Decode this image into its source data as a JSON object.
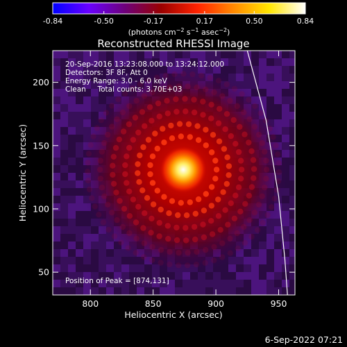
{
  "colorbar": {
    "tick_labels": [
      "-0.84",
      "-0.50",
      "-0.17",
      "0.17",
      "0.50",
      "0.84"
    ],
    "tick_values": [
      -0.84,
      -0.5,
      -0.17,
      0.17,
      0.5,
      0.84
    ],
    "range": [
      -0.84,
      0.84
    ],
    "units_label_parts": [
      "(photons cm",
      "−2",
      " s",
      "−1",
      " asec",
      "−2",
      ")"
    ],
    "colors": [
      "#0000ff",
      "#6a00ff",
      "#6e007a",
      "#9a0000",
      "#ff2200",
      "#ff8800",
      "#ffe600",
      "#ffffff"
    ]
  },
  "chart_data": {
    "type": "heatmap",
    "title": "Reconstructed RHESSI Image",
    "xlabel": "Heliocentric X (arcsec)",
    "ylabel": "Heliocentric Y (arcsec)",
    "xlim": [
      770,
      963
    ],
    "ylim": [
      32,
      225
    ],
    "x_ticks": [
      800,
      850,
      900,
      950
    ],
    "y_ticks": [
      50,
      100,
      150,
      200
    ],
    "x_tick_labels": [
      "800",
      "850",
      "900",
      "950"
    ],
    "y_tick_labels": [
      "50",
      "100",
      "150",
      "200"
    ],
    "peak": [
      874,
      131
    ],
    "annotations": [
      "20-Sep-2016 13:23:08.000 to 13:24:12.000",
      "Detectors: 3F 8F, Att 0",
      "Energy Range: 3.0 - 6.0 keV",
      "Clean     Total counts: 3.70E+03"
    ],
    "peak_label": "Position of Peak = [874,131]",
    "limb_points": [
      [
        925,
        225
      ],
      [
        940,
        170
      ],
      [
        950,
        110
      ],
      [
        955,
        60
      ],
      [
        957,
        32
      ]
    ]
  },
  "footer": {
    "date": "6-Sep-2022 07:21"
  }
}
